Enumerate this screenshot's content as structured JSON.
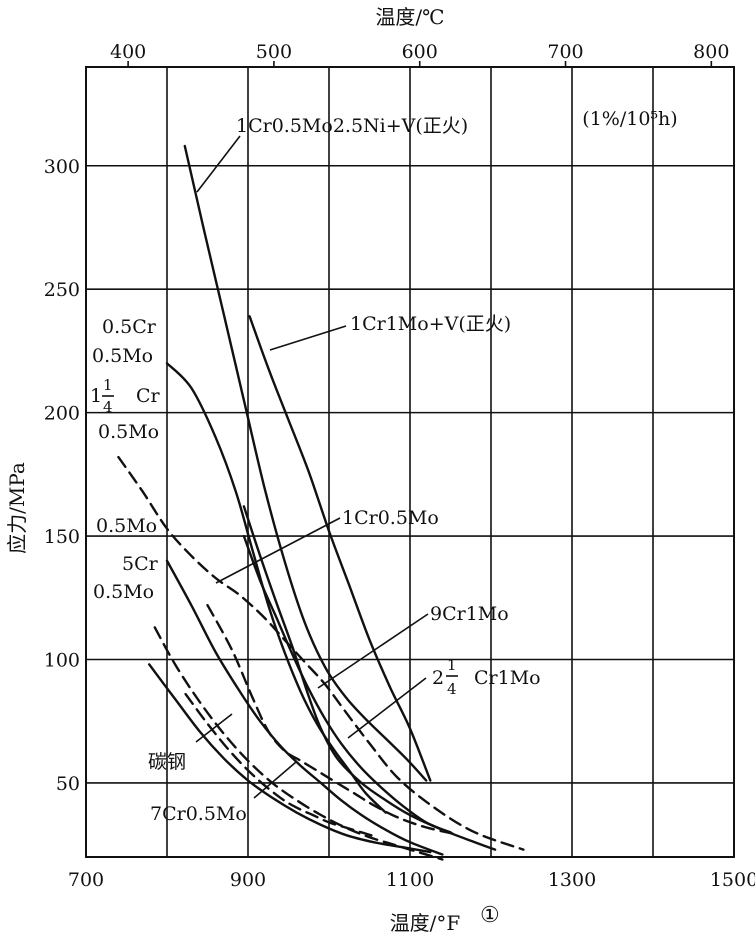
{
  "chart_data": {
    "type": "line",
    "title": "",
    "top_axis": {
      "label": "温度/℃",
      "ticks": [
        400,
        500,
        600,
        700,
        800
      ],
      "tick_labels": [
        "400",
        "500",
        "600",
        "700",
        "800"
      ]
    },
    "xlabel": "温度/°F",
    "xlabel_mark": "①",
    "ylabel": "应力/MPa",
    "xlim": [
      700,
      1500
    ],
    "ylim": [
      20,
      340
    ],
    "x_ticks": [
      700,
      900,
      1100,
      1300,
      1500
    ],
    "x_tick_labels": [
      "700",
      "900",
      "1100",
      "1300",
      "1500"
    ],
    "x_gridlines": [
      800,
      900,
      1000,
      1100,
      1200,
      1300,
      1400
    ],
    "y_ticks": [
      50,
      100,
      150,
      200,
      250,
      300
    ],
    "y_tick_labels": [
      "50",
      "100",
      "150",
      "200",
      "250",
      "300"
    ],
    "grid": true,
    "annotation": "(1%/10⁵h)",
    "series": [
      {
        "name": "1Cr0.5Mo2.5Ni+V(正火)",
        "style": "solid",
        "x": [
          822,
          845,
          870,
          895,
          920,
          945,
          970,
          995,
          1020,
          1045,
          1070,
          1095,
          1120
        ],
        "y": [
          308,
          275,
          240,
          205,
          170,
          140,
          115,
          97,
          85,
          76,
          68,
          60,
          51
        ]
      },
      {
        "name": "1Cr1Mo+V(正火)",
        "style": "solid",
        "x": [
          902,
          925,
          950,
          975,
          1000,
          1025,
          1050,
          1075,
          1100,
          1125
        ],
        "y": [
          239,
          218,
          197,
          176,
          152,
          130,
          108,
          89,
          72,
          51
        ]
      },
      {
        "name": "0.5Cr 0.5Mo",
        "style": "solid",
        "x": [
          800,
          830,
          860,
          885,
          905,
          925,
          945,
          965,
          985,
          1005,
          1025,
          1045,
          1070
        ],
        "y": [
          220,
          210,
          190,
          168,
          145,
          122,
          103,
          87,
          74,
          64,
          55,
          46,
          38
        ]
      },
      {
        "name": "1¼Cr 0.5Mo",
        "style": "dashed",
        "x": [
          740,
          770,
          800,
          830,
          860,
          890,
          920,
          945,
          970,
          995,
          1020,
          1050,
          1085,
          1130,
          1180,
          1240
        ],
        "y": [
          182,
          168,
          153,
          142,
          133,
          126,
          117,
          108,
          99,
          90,
          79,
          66,
          52,
          40,
          30,
          23
        ]
      },
      {
        "name": "0.5Mo",
        "style": "solid",
        "x": [
          800,
          830,
          860,
          890,
          915,
          940,
          965,
          990,
          1015,
          1040,
          1070,
          1100,
          1140
        ],
        "y": [
          140,
          122,
          103,
          87,
          75,
          65,
          57,
          50,
          43,
          37,
          31,
          26,
          21
        ]
      },
      {
        "name": "5Cr 0.5Mo",
        "style": "dashed",
        "x": [
          785,
          810,
          840,
          870,
          900,
          930,
          960,
          990,
          1020,
          1050,
          1080,
          1110,
          1140
        ],
        "y": [
          113,
          98,
          83,
          70,
          59,
          50,
          43,
          37,
          32,
          28,
          25,
          22,
          19
        ]
      },
      {
        "name": "1Cr0.5Mo",
        "style": "solid",
        "x": [
          895,
          915,
          935,
          955,
          975,
          995,
          1015,
          1040,
          1065,
          1090,
          1120,
          1150
        ],
        "y": [
          150,
          132,
          117,
          102,
          88,
          76,
          66,
          56,
          48,
          41,
          34,
          30
        ]
      },
      {
        "name": "9Cr1Mo",
        "style": "dashed",
        "x": [
          850,
          880,
          905,
          925,
          945,
          965,
          985,
          1005,
          1030,
          1055,
          1085,
          1120,
          1160
        ],
        "y": [
          122,
          104,
          85,
          71,
          63,
          59,
          55,
          51,
          46,
          41,
          36,
          32,
          29
        ]
      },
      {
        "name": "2¼Cr1Mo",
        "style": "solid",
        "x": [
          895,
          915,
          935,
          955,
          975,
          990,
          1010,
          1040,
          1070,
          1100,
          1140,
          1180,
          1205
        ],
        "y": [
          162,
          142,
          123,
          105,
          85,
          72,
          60,
          50,
          43,
          37,
          31,
          26,
          23
        ]
      },
      {
        "name": "碳钢",
        "style": "solid",
        "x": [
          778,
          810,
          840,
          870,
          900,
          930,
          960,
          990,
          1020,
          1055,
          1090,
          1125
        ],
        "y": [
          98,
          84,
          71,
          60,
          51,
          44,
          38,
          33,
          29,
          26,
          24,
          22
        ]
      },
      {
        "name": "7Cr0.5Mo",
        "style": "dashed",
        "x": [
          823,
          850,
          880,
          910,
          940,
          960,
          980,
          1000,
          1020,
          1040,
          1060
        ],
        "y": [
          86,
          74,
          62,
          52,
          44,
          40,
          37,
          34,
          32,
          30,
          28
        ]
      }
    ],
    "labels": {
      "l1": "1Cr0.5Mo2.5Ni+V(正火)",
      "l2": "1Cr1Mo+V(正火)",
      "l3a": "0.5Cr",
      "l3b": "0.5Mo",
      "l4a": "1",
      "l4_num": "1",
      "l4_den": "4",
      "l4b": "Cr",
      "l4c": "0.5Mo",
      "l5": "0.5Mo",
      "l6a": "5Cr",
      "l6b": "0.5Mo",
      "l7": "1Cr0.5Mo",
      "l8": "9Cr1Mo",
      "l9a": "2",
      "l9_num": "1",
      "l9_den": "4",
      "l9b": "Cr1Mo",
      "l10": "碳钢",
      "l11": "7Cr0.5Mo"
    }
  }
}
